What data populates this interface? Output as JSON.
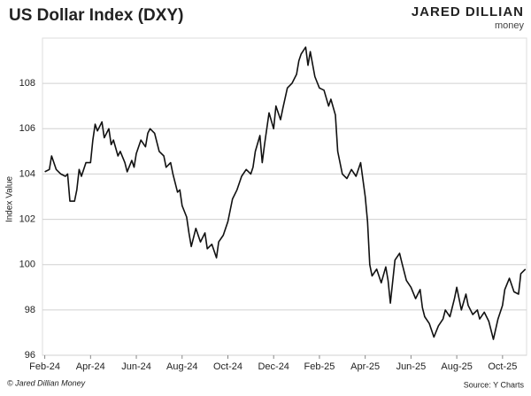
{
  "chart_data": {
    "type": "line",
    "title": "US Dollar Index (DXY)",
    "brand": "JARED DILLIAN",
    "brand_sub": "money",
    "y_label": "Index Value",
    "footer_left": "© Jared Dillian Money",
    "footer_right": "Source: Y Charts",
    "xlim": [
      -0.1,
      21.05
    ],
    "ylim": [
      96,
      110
    ],
    "xticks": [
      {
        "value": 0,
        "label": "Feb-24"
      },
      {
        "value": 2,
        "label": "Apr-24"
      },
      {
        "value": 4,
        "label": "Jun-24"
      },
      {
        "value": 6,
        "label": "Aug-24"
      },
      {
        "value": 8,
        "label": "Oct-24"
      },
      {
        "value": 10,
        "label": "Dec-24"
      },
      {
        "value": 12,
        "label": "Feb-25"
      },
      {
        "value": 14,
        "label": "Apr-25"
      },
      {
        "value": 16,
        "label": "Jun-25"
      },
      {
        "value": 18,
        "label": "Aug-25"
      },
      {
        "value": 20,
        "label": "Oct-25"
      }
    ],
    "yticks": [
      96,
      98,
      100,
      102,
      104,
      106,
      108
    ],
    "grid": true,
    "series": [
      {
        "name": "DXY",
        "color": "#111111",
        "x": [
          0,
          0.2,
          0.3,
          0.5,
          0.7,
          0.9,
          1.0,
          1.1,
          1.3,
          1.4,
          1.5,
          1.6,
          1.8,
          2.0,
          2.1,
          2.2,
          2.3,
          2.5,
          2.6,
          2.8,
          2.9,
          3.0,
          3.2,
          3.3,
          3.5,
          3.6,
          3.8,
          3.9,
          4.0,
          4.2,
          4.4,
          4.5,
          4.6,
          4.8,
          5.0,
          5.2,
          5.3,
          5.5,
          5.6,
          5.8,
          5.9,
          6.0,
          6.2,
          6.3,
          6.4,
          6.6,
          6.8,
          7.0,
          7.1,
          7.3,
          7.5,
          7.6,
          7.8,
          8.0,
          8.2,
          8.4,
          8.6,
          8.8,
          9.0,
          9.1,
          9.2,
          9.4,
          9.5,
          9.6,
          9.8,
          10.0,
          10.1,
          10.3,
          10.4,
          10.6,
          10.8,
          11.0,
          11.1,
          11.2,
          11.4,
          11.5,
          11.6,
          11.8,
          12.0,
          12.2,
          12.4,
          12.5,
          12.7,
          12.8,
          13.0,
          13.2,
          13.4,
          13.6,
          13.8,
          14.0,
          14.1,
          14.2,
          14.3,
          14.5,
          14.7,
          14.9,
          15.0,
          15.1,
          15.3,
          15.5,
          15.6,
          15.8,
          16.0,
          16.2,
          16.4,
          16.5,
          16.6,
          16.8,
          17.0,
          17.2,
          17.4,
          17.5,
          17.7,
          17.9,
          18.0,
          18.2,
          18.4,
          18.5,
          18.7,
          18.9,
          19.0,
          19.2,
          19.4,
          19.6,
          19.8,
          20.0,
          20.1,
          20.3,
          20.5,
          20.7,
          20.8,
          21.0
        ],
        "values": [
          104.1,
          104.2,
          104.8,
          104.2,
          104.0,
          103.9,
          104.0,
          102.8,
          102.8,
          103.3,
          104.2,
          103.9,
          104.5,
          104.5,
          105.5,
          106.2,
          105.9,
          106.3,
          105.6,
          106.0,
          105.3,
          105.5,
          104.8,
          105.0,
          104.5,
          104.1,
          104.6,
          104.3,
          104.9,
          105.5,
          105.2,
          105.8,
          106.0,
          105.8,
          105.0,
          104.8,
          104.3,
          104.5,
          104.0,
          103.2,
          103.3,
          102.6,
          102.1,
          101.4,
          100.8,
          101.6,
          101.0,
          101.4,
          100.7,
          100.9,
          100.3,
          101.0,
          101.3,
          101.9,
          102.9,
          103.3,
          103.9,
          104.2,
          104.0,
          104.3,
          105.0,
          105.7,
          104.5,
          105.3,
          106.7,
          106.0,
          107.0,
          106.4,
          106.9,
          107.8,
          108.0,
          108.4,
          109.0,
          109.3,
          109.6,
          108.8,
          109.4,
          108.3,
          107.8,
          107.7,
          107.0,
          107.3,
          106.6,
          105.0,
          104.0,
          103.8,
          104.2,
          103.9,
          104.5,
          103.0,
          101.9,
          100.0,
          99.5,
          99.8,
          99.2,
          99.9,
          99.3,
          98.3,
          100.2,
          100.5,
          100.1,
          99.3,
          99.0,
          98.5,
          98.9,
          98.1,
          97.7,
          97.4,
          96.8,
          97.3,
          97.6,
          98.0,
          97.7,
          98.5,
          99.0,
          98.0,
          98.7,
          98.2,
          97.8,
          98.0,
          97.6,
          97.9,
          97.5,
          96.7,
          97.6,
          98.2,
          98.9,
          99.4,
          98.8,
          98.7,
          99.6,
          99.8
        ]
      }
    ]
  }
}
